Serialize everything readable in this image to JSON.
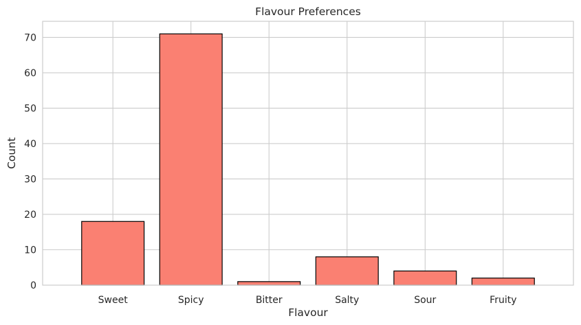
{
  "chart_data": {
    "type": "bar",
    "title": "Flavour Preferences",
    "xlabel": "Flavour",
    "ylabel": "Count",
    "categories": [
      "Sweet",
      "Spicy",
      "Bitter",
      "Salty",
      "Sour",
      "Fruity"
    ],
    "values": [
      18,
      71,
      1,
      8,
      4,
      2
    ],
    "ylim": [
      0,
      74.55
    ],
    "yticks": [
      0,
      10,
      20,
      30,
      40,
      50,
      60,
      70
    ],
    "grid": true,
    "bar_color": "#fa8072",
    "edge_color": "#000000",
    "grid_color": "#cccccc",
    "spine_color": "#cccccc"
  }
}
